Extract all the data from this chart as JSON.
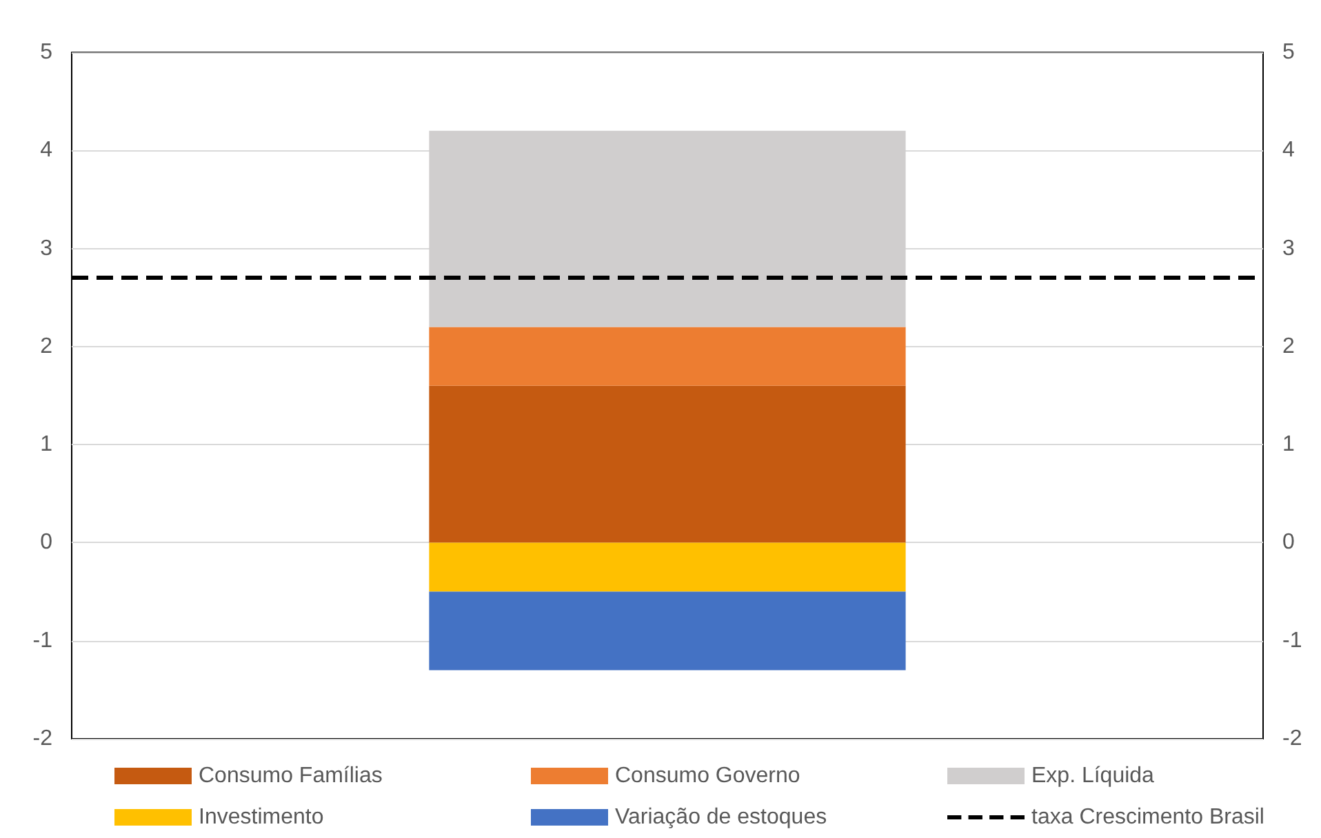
{
  "chart_data": {
    "type": "bar",
    "stacked": true,
    "categories": [
      null
    ],
    "series": [
      {
        "name": "Consumo Famílias",
        "color": "#c55a11",
        "values": [
          1.6
        ]
      },
      {
        "name": "Consumo Governo",
        "color": "#ed7d31",
        "values": [
          0.6
        ]
      },
      {
        "name": "Exp. Líquida",
        "color": "#d0cece",
        "values": [
          2.0
        ]
      },
      {
        "name": "Investimento",
        "color": "#ffc000",
        "values": [
          -0.5
        ]
      },
      {
        "name": "Variação de estoques",
        "color": "#4472c4",
        "values": [
          -0.8
        ]
      }
    ],
    "ref_lines": [
      {
        "axis": "y",
        "value": 2.7,
        "label": "taxa Crescimento Brasil",
        "color": "#000000",
        "line_style": "dashed"
      }
    ],
    "ylim": [
      -2,
      5
    ],
    "yticks": [
      -2,
      -1,
      0,
      1,
      2,
      3,
      4,
      5
    ],
    "y2lim": [
      -2,
      5
    ],
    "y2ticks": [
      -2,
      -1,
      0,
      1,
      2,
      3,
      4,
      5
    ],
    "grid": "y",
    "legend": "bottom"
  }
}
